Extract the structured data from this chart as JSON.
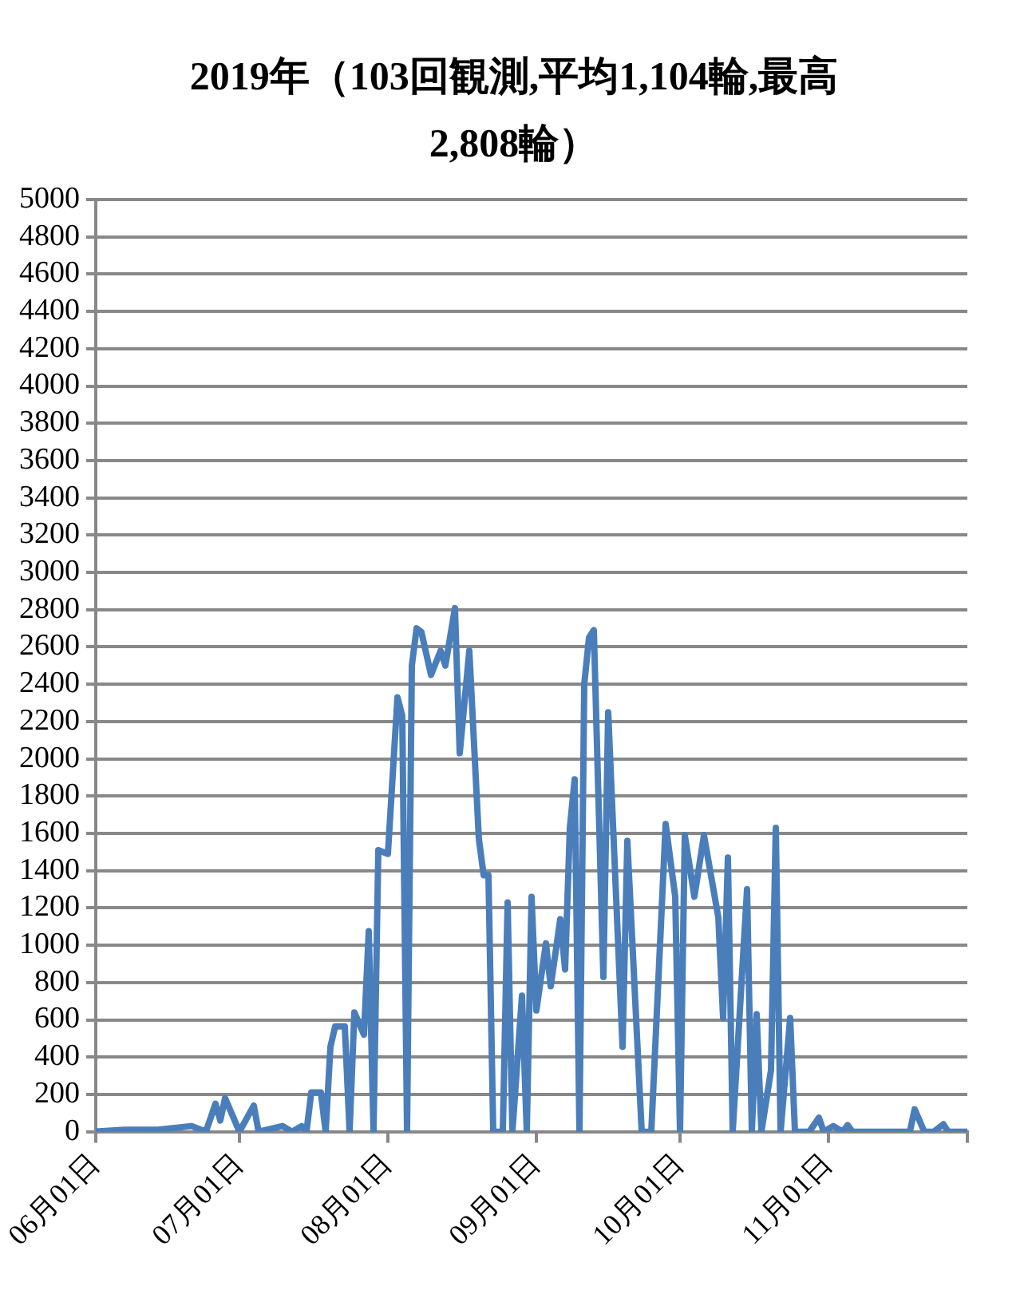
{
  "chart_data": {
    "type": "line",
    "title": "2019年（103回観測,平均1,104輪,最高2,808輪）",
    "x": [
      "2019-06-01",
      "2019-06-07",
      "2019-06-14",
      "2019-06-21",
      "2019-06-24",
      "2019-06-26",
      "2019-06-27",
      "2019-06-28",
      "2019-07-01",
      "2019-07-04",
      "2019-07-05",
      "2019-07-10",
      "2019-07-12",
      "2019-07-14",
      "2019-07-15",
      "2019-07-16",
      "2019-07-18",
      "2019-07-19",
      "2019-07-20",
      "2019-07-21",
      "2019-07-23",
      "2019-07-24",
      "2019-07-25",
      "2019-07-27",
      "2019-07-28",
      "2019-07-29",
      "2019-07-30",
      "2019-08-01",
      "2019-08-03",
      "2019-08-04",
      "2019-08-05",
      "2019-08-06",
      "2019-08-07",
      "2019-08-08",
      "2019-08-10",
      "2019-08-12",
      "2019-08-13",
      "2019-08-15",
      "2019-08-16",
      "2019-08-18",
      "2019-08-20",
      "2019-08-21",
      "2019-08-22",
      "2019-08-23",
      "2019-08-25",
      "2019-08-26",
      "2019-08-27",
      "2019-08-29",
      "2019-08-30",
      "2019-08-31",
      "2019-09-01",
      "2019-09-03",
      "2019-09-04",
      "2019-09-06",
      "2019-09-07",
      "2019-09-08",
      "2019-09-09",
      "2019-09-10",
      "2019-09-11",
      "2019-09-12",
      "2019-09-13",
      "2019-09-15",
      "2019-09-16",
      "2019-09-19",
      "2019-09-20",
      "2019-09-23",
      "2019-09-25",
      "2019-09-28",
      "2019-09-30",
      "2019-10-01",
      "2019-10-02",
      "2019-10-04",
      "2019-10-06",
      "2019-10-09",
      "2019-10-10",
      "2019-10-11",
      "2019-10-12",
      "2019-10-15",
      "2019-10-16",
      "2019-10-17",
      "2019-10-18",
      "2019-10-20",
      "2019-10-21",
      "2019-10-22",
      "2019-10-24",
      "2019-10-25",
      "2019-10-28",
      "2019-10-30",
      "2019-10-31",
      "2019-11-02",
      "2019-11-04",
      "2019-11-05",
      "2019-11-06",
      "2019-11-18",
      "2019-11-19",
      "2019-11-21",
      "2019-11-23",
      "2019-11-25",
      "2019-11-26",
      "2019-11-30"
    ],
    "series": [
      {
        "color": "#4a7ebb",
        "values": [
          0,
          10,
          10,
          30,
          0,
          150,
          60,
          180,
          0,
          140,
          0,
          30,
          0,
          30,
          0,
          210,
          210,
          0,
          455,
          565,
          565,
          0,
          640,
          520,
          1075,
          0,
          1510,
          1490,
          2330,
          2230,
          0,
          2500,
          2700,
          2680,
          2450,
          2580,
          2500,
          2808,
          2030,
          2580,
          1570,
          1375,
          1375,
          0,
          0,
          1230,
          0,
          730,
          0,
          1260,
          650,
          1010,
          780,
          1140,
          870,
          1630,
          1890,
          0,
          2400,
          2650,
          2690,
          830,
          2250,
          455,
          1560,
          0,
          0,
          1650,
          1260,
          0,
          1590,
          1260,
          1590,
          1150,
          610,
          1470,
          0,
          1300,
          0,
          630,
          0,
          330,
          1630,
          0,
          610,
          0,
          0,
          75,
          0,
          30,
          0,
          35,
          0,
          0,
          120,
          0,
          0,
          40,
          0,
          0
        ]
      }
    ],
    "xlim": [
      "2019-06-01",
      "2019-11-30"
    ],
    "xticks": [
      {
        "value": "2019-06-01",
        "label": "06月01日"
      },
      {
        "value": "2019-07-01",
        "label": "07月01日"
      },
      {
        "value": "2019-08-01",
        "label": "08月01日"
      },
      {
        "value": "2019-09-01",
        "label": "09月01日"
      },
      {
        "value": "2019-10-01",
        "label": "10月01日"
      },
      {
        "value": "2019-11-01",
        "label": "11月01日"
      },
      {
        "value": "2019-11-30",
        "label": null
      }
    ],
    "ylim": [
      0,
      5000
    ],
    "yticks": [
      0,
      200,
      400,
      600,
      800,
      1000,
      1200,
      1400,
      1600,
      1800,
      2000,
      2200,
      2400,
      2600,
      2800,
      3000,
      3200,
      3400,
      3600,
      3800,
      4000,
      4200,
      4400,
      4600,
      4800,
      5000
    ],
    "grid": "y",
    "legend": false,
    "marker": "none",
    "line_style": "solid"
  }
}
